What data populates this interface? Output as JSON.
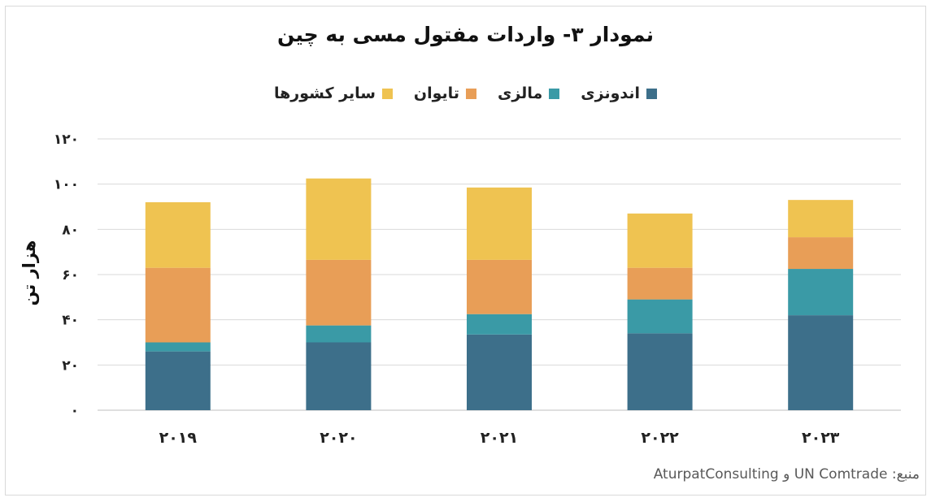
{
  "chart_data": {
    "type": "bar",
    "stacked": true,
    "title": "نمودار ۳- واردات مفتول مسی به چین",
    "ylabel": "هزار تن",
    "xlabel": "",
    "ylim": [
      0,
      120
    ],
    "yticks": [
      0,
      20,
      40,
      60,
      80,
      100,
      120
    ],
    "ytick_labels": [
      "۰",
      "۲۰",
      "۴۰",
      "۶۰",
      "۸۰",
      "۱۰۰",
      "۱۲۰"
    ],
    "categories": [
      "۲۰۱۹",
      "۲۰۲۰",
      "۲۰۲۱",
      "۲۰۲۲",
      "۲۰۲۳"
    ],
    "series": [
      {
        "name": "اندونزی",
        "color": "#3d6f8a",
        "values": [
          26,
          30,
          33.5,
          34,
          42
        ]
      },
      {
        "name": "مالزی",
        "color": "#3a9aa6",
        "values": [
          4,
          7.5,
          9,
          15,
          20.5
        ]
      },
      {
        "name": "تایوان",
        "color": "#e89e57",
        "values": [
          33,
          29,
          24,
          14,
          14
        ]
      },
      {
        "name": "سایر کشورها",
        "color": "#efc351",
        "values": [
          29,
          36,
          32,
          24,
          16.5
        ]
      }
    ],
    "grid": true,
    "legend_position": "top"
  },
  "source_text": "منبع: UN Comtrade و AturpatConsulting"
}
